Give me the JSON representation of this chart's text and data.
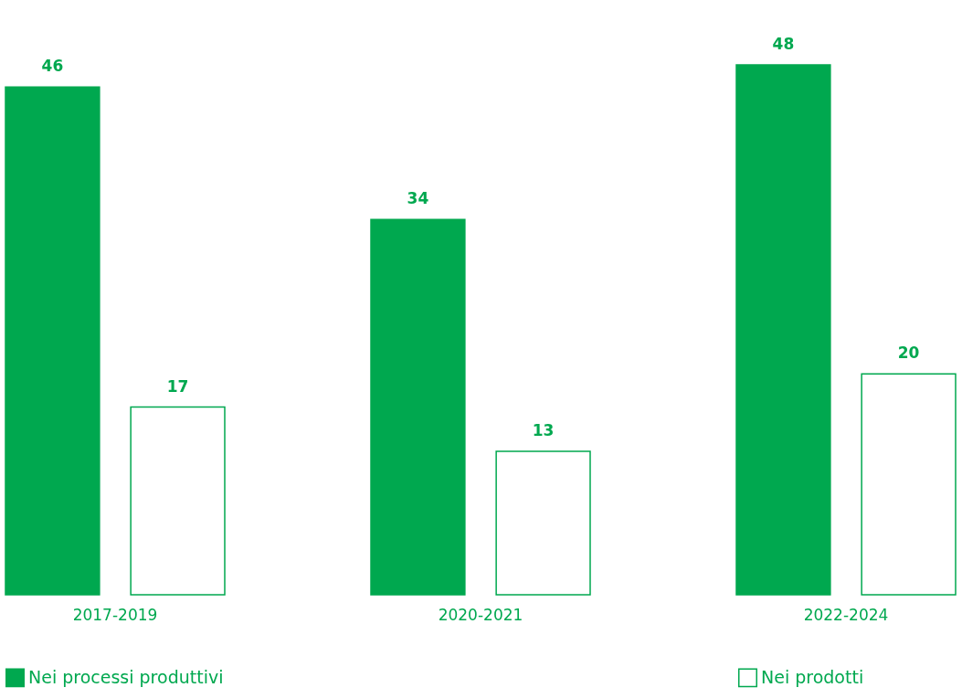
{
  "chart_data": {
    "type": "bar",
    "categories": [
      "2017-2019",
      "2020-2021",
      "2022-2024"
    ],
    "series": [
      {
        "name": "Nei processi produttivi",
        "color": "#00a84f",
        "values": [
          46,
          34,
          48
        ]
      },
      {
        "name": "Nei prodotti",
        "color": "#00a84f",
        "values": [
          17,
          13,
          20
        ]
      }
    ],
    "data_labels": true,
    "legend": "bottom",
    "grid": false,
    "tick_labels": "x"
  }
}
